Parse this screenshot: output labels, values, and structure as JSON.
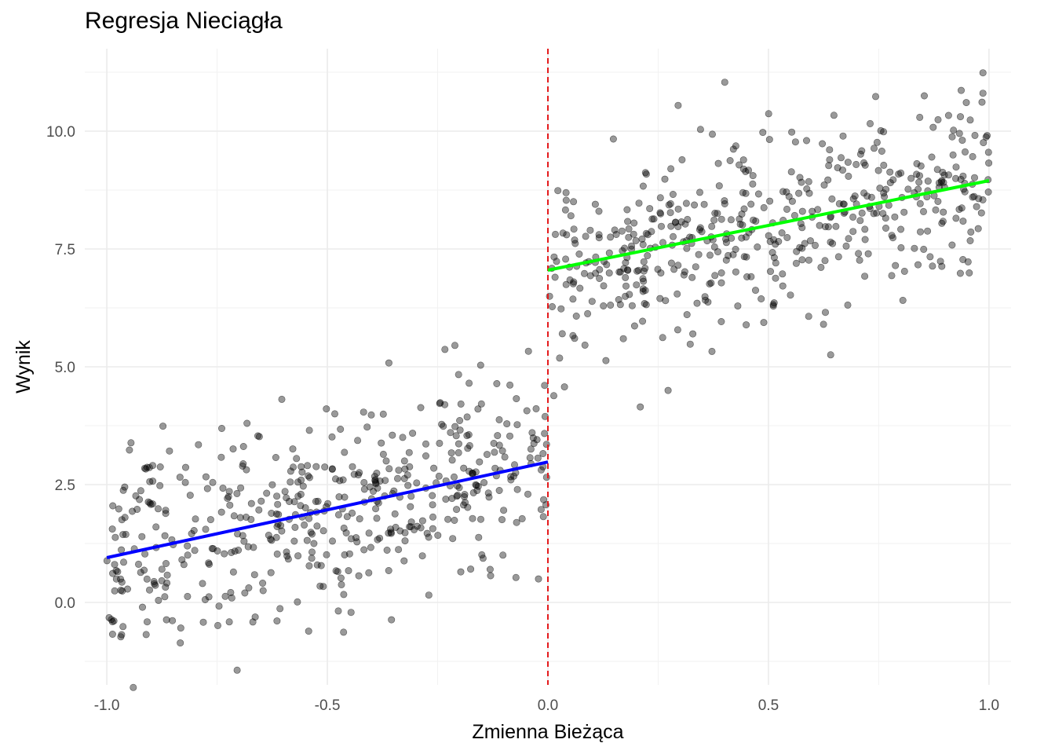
{
  "chart_data": {
    "type": "scatter",
    "title": "Regresja Nieciągła",
    "xlabel": "Zmienna Bieżąca",
    "ylabel": "Wynik",
    "xlim": [
      -1.05,
      1.05
    ],
    "ylim": [
      -1.75,
      11.75
    ],
    "x_ticks": [
      -1.0,
      -0.5,
      0.0,
      0.5,
      1.0
    ],
    "x_tick_labels": [
      "-1.0",
      "-0.5",
      "0.0",
      "0.5",
      "1.0"
    ],
    "y_ticks": [
      0.0,
      2.5,
      5.0,
      7.5,
      10.0
    ],
    "y_tick_labels": [
      "0.0",
      "2.5",
      "5.0",
      "7.5",
      "10.0"
    ],
    "grid": true,
    "cutoff": {
      "x": 0.0,
      "color": "#e41a1c",
      "style": "dashed"
    },
    "points": {
      "color": "#000000",
      "count_per_side": 500,
      "left": {
        "x_range": [
          -1.0,
          0.0
        ],
        "intercept": 3.0,
        "slope": 2.0,
        "noise_sd": 1.0
      },
      "right": {
        "x_range": [
          0.0,
          1.0
        ],
        "intercept": 7.0,
        "slope": 2.0,
        "noise_sd": 1.0
      }
    },
    "series": [
      {
        "type": "line",
        "color": "#0000ff",
        "x": [
          -1.0,
          0.0
        ],
        "y": [
          0.95,
          2.98
        ]
      },
      {
        "type": "line",
        "color": "#00ff00",
        "x": [
          0.0,
          1.0
        ],
        "y": [
          7.05,
          8.95
        ]
      }
    ]
  }
}
